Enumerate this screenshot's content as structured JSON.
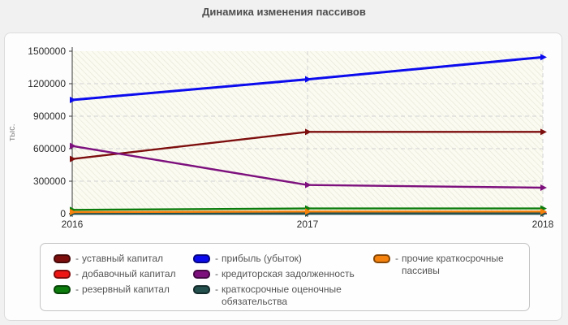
{
  "title": "Динамика изменения пассивов",
  "chart_data": {
    "type": "line",
    "title": "Динамика изменения пассивов",
    "xlabel": "",
    "ylabel": "тыс.",
    "categories": [
      "2016",
      "2017",
      "2018"
    ],
    "series": [
      {
        "name": "уставный капитал",
        "color": "#7d0e0e",
        "values": [
          505000,
          755000,
          755000
        ]
      },
      {
        "name": "добавочный капитал",
        "color": "#ee1515",
        "values": [
          8000,
          8000,
          8000
        ]
      },
      {
        "name": "резервный капитал",
        "color": "#0c7c0c",
        "values": [
          35000,
          48000,
          48000
        ]
      },
      {
        "name": "прибыль (убыток)",
        "color": "#0b0bee",
        "values": [
          1050000,
          1240000,
          1445000
        ]
      },
      {
        "name": "кредиторская задолженность",
        "color": "#7d107d",
        "values": [
          625000,
          265000,
          240000
        ]
      },
      {
        "name": "краткосрочные оценочные обязательства",
        "color": "#24504e",
        "values": [
          1000,
          1000,
          1000
        ]
      },
      {
        "name": "прочие краткосрочные пассивы",
        "color": "#f5820d",
        "values": [
          15000,
          20000,
          20000
        ]
      }
    ],
    "ylim": [
      0,
      1500000
    ],
    "y_ticks": [
      0,
      300000,
      600000,
      900000,
      1200000,
      1500000
    ],
    "y_tick_labels": [
      "0",
      "300000",
      "600000",
      "900000",
      "1200000",
      "1500000"
    ],
    "grid": "horizontal dashed at y ticks, vertical dashed at 2017 and 2018",
    "legend_position": "bottom"
  },
  "legend": {
    "prefix": "-",
    "columns": [
      [
        0,
        1,
        2
      ],
      [
        3,
        4,
        5
      ],
      [
        6
      ]
    ]
  },
  "colors": {
    "page_bg": "#f1f1f1",
    "panel_bg": "#fdfdfd",
    "plot_bg": "#fbfbf1",
    "hatch_line": "#e4e4d6",
    "grid_line": "#d2d2d2",
    "axis_line": "#3a3a3a",
    "tick_text": "#2b2b2b",
    "axis_title_text": "#8a8a8a",
    "title_text": "#4d4d4d",
    "legend_text": "#555555"
  }
}
